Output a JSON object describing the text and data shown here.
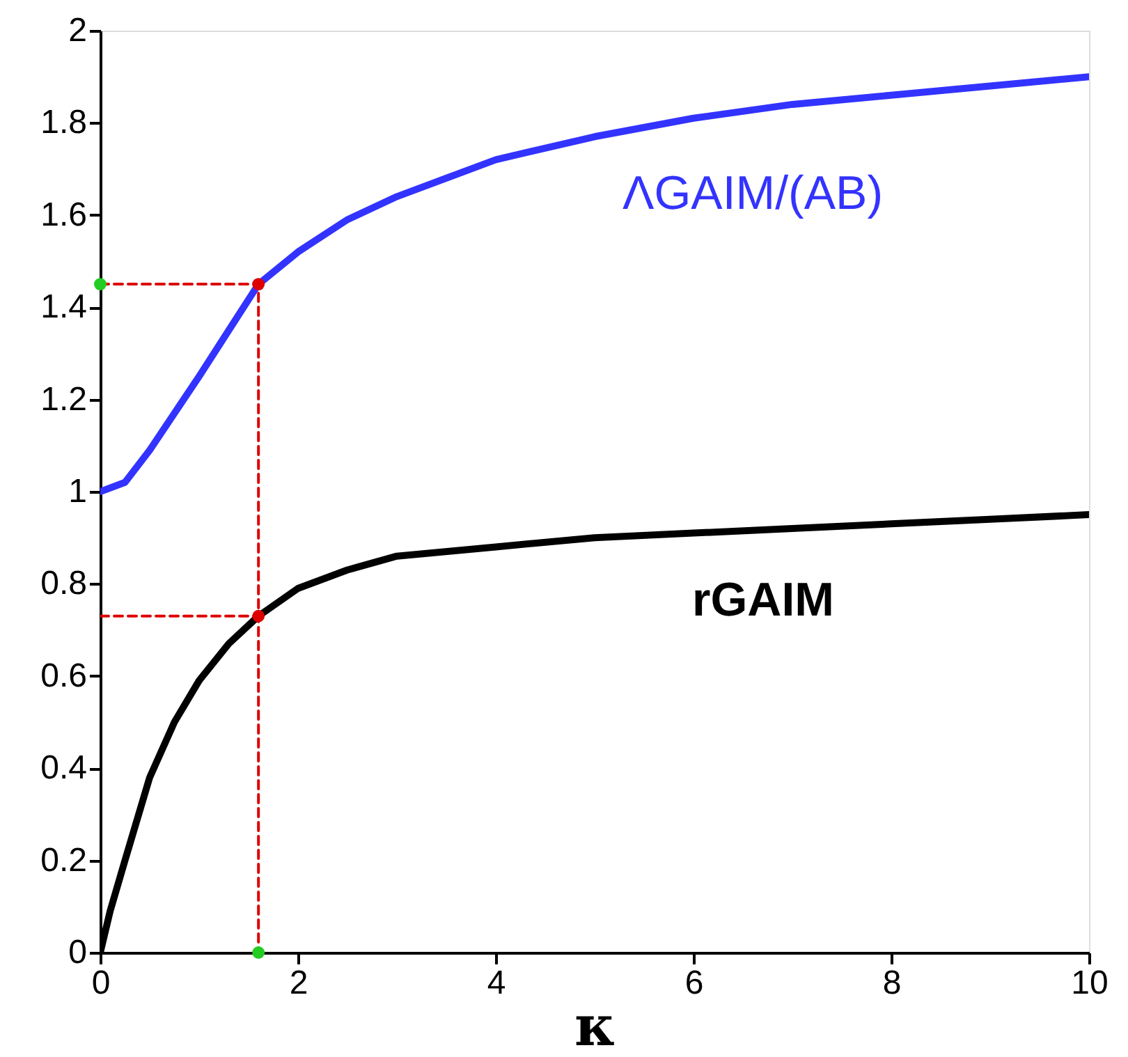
{
  "chart_data": {
    "type": "line",
    "xlabel": "κ",
    "xlim": [
      0,
      10
    ],
    "xticks": [
      0,
      2,
      4,
      6,
      8,
      10
    ],
    "ylim": [
      0,
      2
    ],
    "yticks": [
      0,
      0.2,
      0.4,
      0.6,
      0.8,
      1,
      1.2,
      1.4,
      1.6,
      1.8,
      2
    ],
    "grid": false,
    "series": [
      {
        "name": "ΛGAIM/(AB)",
        "color": "#3333ff",
        "x": [
          0,
          0.25,
          0.5,
          0.75,
          1,
          1.3,
          1.6,
          2,
          2.5,
          3,
          4,
          5,
          6,
          7,
          8,
          9,
          10
        ],
        "values": [
          1.0,
          1.02,
          1.09,
          1.17,
          1.25,
          1.35,
          1.45,
          1.52,
          1.59,
          1.64,
          1.72,
          1.77,
          1.81,
          1.84,
          1.86,
          1.88,
          1.9
        ]
      },
      {
        "name": "rGAIM",
        "color": "#000000",
        "x": [
          0,
          0.1,
          0.25,
          0.5,
          0.75,
          1,
          1.3,
          1.6,
          2,
          2.5,
          3,
          4,
          5,
          6,
          7,
          8,
          9,
          10
        ],
        "values": [
          0,
          0.09,
          0.2,
          0.38,
          0.5,
          0.59,
          0.67,
          0.73,
          0.79,
          0.83,
          0.86,
          0.88,
          0.9,
          0.91,
          0.92,
          0.93,
          0.94,
          0.95
        ]
      },
      {
        "type": "line",
        "line_style": "dashed",
        "color": "#dd0000",
        "x": [
          0,
          1.6,
          1.6
        ],
        "values": [
          1.45,
          1.45,
          0
        ]
      },
      {
        "type": "line",
        "line_style": "dashed",
        "color": "#dd0000",
        "x": [
          0,
          1.6
        ],
        "values": [
          0.73,
          0.73
        ]
      },
      {
        "type": "scatter",
        "marker": "circle",
        "color": "#dd0000",
        "x": [
          1.6,
          1.6
        ],
        "values": [
          1.45,
          0.73
        ]
      },
      {
        "type": "scatter",
        "marker": "circle",
        "color": "#22cc22",
        "x": [
          0,
          1.6
        ],
        "values": [
          1.45,
          0
        ]
      }
    ]
  }
}
